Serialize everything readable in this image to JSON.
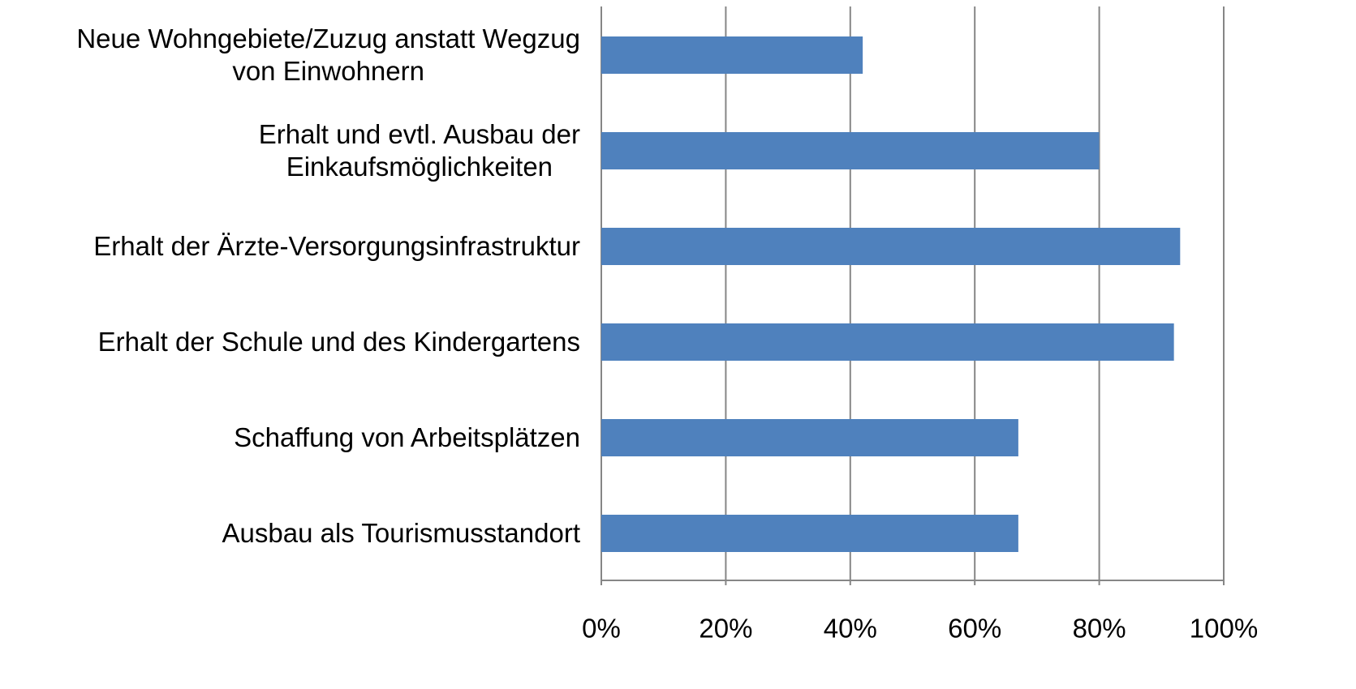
{
  "chart_data": {
    "type": "barh",
    "categories": [
      "Neue Wohngebiete/Zuzug anstatt Wegzug\nvon Einwohnern",
      "Erhalt und evtl. Ausbau der\nEinkaufsmöglichkeiten",
      "Erhalt der Ärzte-Versorgungsinfrastruktur",
      "Erhalt der Schule und des Kindergartens",
      "Schaffung von Arbeitsplätzen",
      "Ausbau als Tourismusstandort"
    ],
    "values": [
      42,
      80,
      93,
      92,
      67,
      67
    ],
    "color": "#4f81bd",
    "xlim": [
      0,
      100
    ],
    "xticks": [
      {
        "value": 0,
        "label": "0%"
      },
      {
        "value": 20,
        "label": "20%"
      },
      {
        "value": 40,
        "label": "40%"
      },
      {
        "value": 60,
        "label": "60%"
      },
      {
        "value": 80,
        "label": "80%"
      },
      {
        "value": 100,
        "label": "100%"
      }
    ],
    "grid": true
  }
}
